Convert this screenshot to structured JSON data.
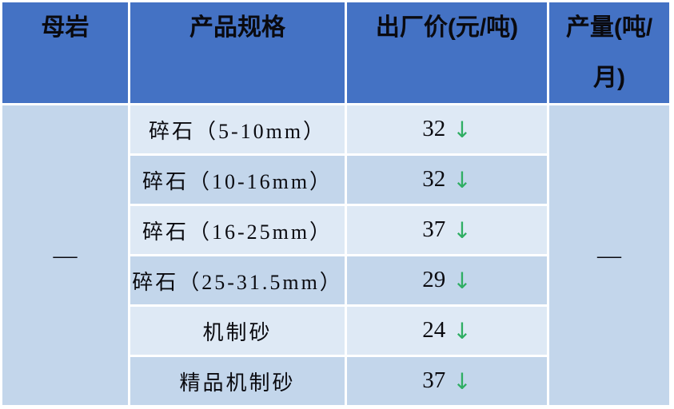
{
  "table": {
    "headers": {
      "rock": "母岩",
      "spec": "产品规格",
      "price": "出厂价(元/吨)",
      "output": "产量(吨/月)"
    },
    "rock_value": "—",
    "output_value": "—",
    "trend_down_glyph": "↓",
    "rows": [
      {
        "spec": "碎石（5-10mm）",
        "price": "32"
      },
      {
        "spec": "碎石（10-16mm）",
        "price": "32"
      },
      {
        "spec": "碎石（16-25mm）",
        "price": "37"
      },
      {
        "spec": "碎石（25-31.5mm）",
        "price": "29"
      },
      {
        "spec": "机制砂",
        "price": "24"
      },
      {
        "spec": "精品机制砂",
        "price": "37"
      }
    ]
  },
  "colors": {
    "header_blue": "#4472C4",
    "band_light": "#DEE9F5",
    "band_dark": "#C3D6EB",
    "grid_white": "#FFFFFF",
    "text_dark": "#0A0A0F",
    "arrow_green": "#2FAE63"
  }
}
